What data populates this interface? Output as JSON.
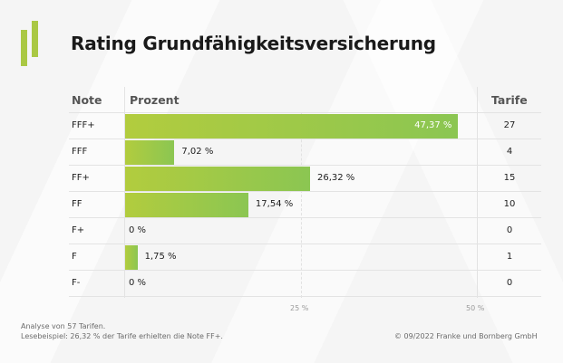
{
  "title": "Rating Grundfähigkeitsversicherung",
  "headers": {
    "note": "Note",
    "prozent": "Prozent",
    "tarife": "Tarife"
  },
  "colors": {
    "accent": "#aac844",
    "bar_start": "#b2cc3e",
    "bar_end": "#8bc652"
  },
  "chart_data": {
    "type": "bar",
    "orientation": "horizontal",
    "title": "Rating Grundfähigkeitsversicherung",
    "categories": [
      "FFF+",
      "FFF",
      "FF+",
      "FF",
      "F+",
      "F",
      "F-"
    ],
    "values": [
      47.37,
      7.02,
      26.32,
      17.54,
      0,
      1.75,
      0
    ],
    "value_labels": [
      "47,37 %",
      "7,02 %",
      "26,32 %",
      "17,54 %",
      "0 %",
      "1,75 %",
      "0 %"
    ],
    "tarife": [
      "27",
      "4",
      "15",
      "10",
      "0",
      "1",
      "0"
    ],
    "xlabel": "Prozent",
    "ylabel": "Note",
    "xlim": [
      0,
      50
    ],
    "xticks": [
      25,
      50
    ],
    "xtick_labels": [
      "25 %",
      "50 %"
    ],
    "grid": true
  },
  "footer": {
    "analysis": "Analyse von 57 Tarifen.",
    "example": "Lesebeispiel: 26,32 % der Tarife erhielten die Note FF+.",
    "copyright": "© 09/2022 Franke und Bornberg GmbH"
  }
}
